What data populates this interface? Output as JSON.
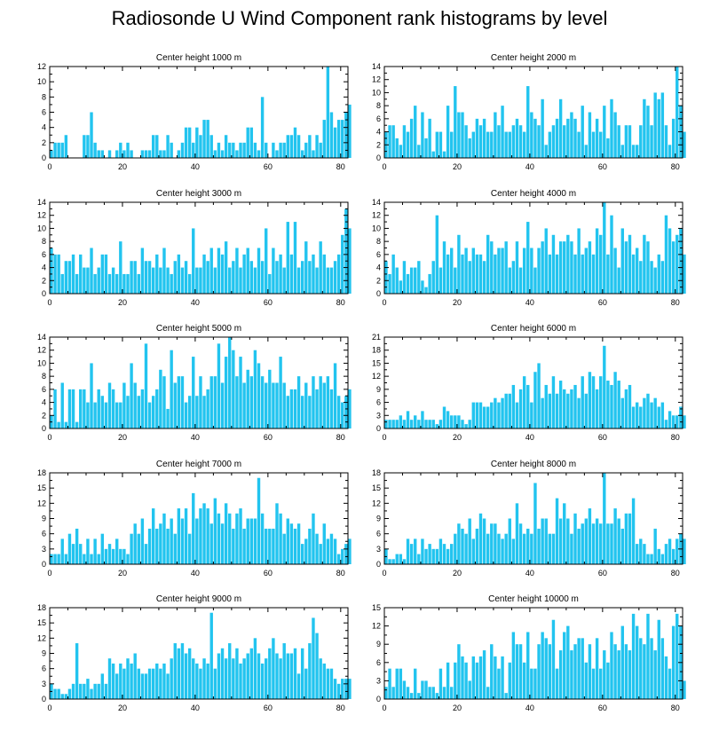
{
  "title": "Radiosonde U Wind Component rank histograms by level",
  "colors": {
    "bar": "#22c4ef",
    "axis": "#000000",
    "text": "#000000"
  },
  "chart_data": [
    {
      "type": "bar",
      "title": "Center height 1000 m",
      "xlabel": "",
      "ylabel": "",
      "xlim": [
        0,
        82
      ],
      "ylim": [
        0,
        12
      ],
      "xticks": [
        0,
        20,
        40,
        60,
        80
      ],
      "yticks": [
        0,
        2,
        4,
        6,
        8,
        10,
        12
      ],
      "values": [
        1,
        2,
        2,
        2,
        3,
        0,
        0,
        0,
        0,
        3,
        3,
        6,
        2,
        1,
        1,
        0,
        1,
        0,
        1,
        2,
        1,
        2,
        1,
        0,
        0,
        1,
        1,
        1,
        3,
        3,
        1,
        1,
        3,
        2,
        0,
        1,
        2,
        4,
        4,
        2,
        4,
        3,
        5,
        5,
        3,
        1,
        2,
        1,
        3,
        2,
        2,
        1,
        2,
        2,
        4,
        4,
        2,
        1,
        8,
        2,
        0,
        2,
        1,
        2,
        2,
        3,
        3,
        4,
        3,
        1,
        2,
        3,
        1,
        3,
        2,
        5,
        12,
        6,
        4,
        5,
        5,
        6,
        7
      ]
    },
    {
      "type": "bar",
      "title": "Center height 2000 m",
      "xlabel": "",
      "ylabel": "",
      "xlim": [
        0,
        82
      ],
      "ylim": [
        0,
        14
      ],
      "xticks": [
        0,
        20,
        40,
        60,
        80
      ],
      "yticks": [
        0,
        2,
        4,
        6,
        8,
        10,
        12,
        14
      ],
      "values": [
        4,
        5,
        5,
        3,
        2,
        5,
        4,
        6,
        8,
        2,
        7,
        3,
        6,
        1,
        4,
        4,
        1,
        8,
        4,
        11,
        7,
        7,
        5,
        3,
        4,
        6,
        5,
        6,
        4,
        4,
        7,
        5,
        8,
        4,
        4,
        5,
        6,
        5,
        4,
        11,
        7,
        6,
        5,
        9,
        2,
        4,
        5,
        6,
        9,
        5,
        6,
        7,
        6,
        4,
        8,
        2,
        7,
        4,
        6,
        4,
        8,
        3,
        9,
        7,
        5,
        2,
        5,
        5,
        2,
        2,
        5,
        9,
        8,
        5,
        10,
        9,
        10,
        5,
        2,
        6,
        14,
        8,
        4
      ]
    },
    {
      "type": "bar",
      "title": "Center height 3000 m",
      "xlabel": "",
      "ylabel": "",
      "xlim": [
        0,
        82
      ],
      "ylim": [
        0,
        14
      ],
      "xticks": [
        0,
        20,
        40,
        60,
        80
      ],
      "yticks": [
        0,
        2,
        4,
        6,
        8,
        10,
        12,
        14
      ],
      "values": [
        7,
        6,
        6,
        3,
        5,
        5,
        6,
        3,
        6,
        4,
        4,
        7,
        3,
        4,
        6,
        6,
        3,
        4,
        3,
        8,
        3,
        3,
        5,
        5,
        3,
        7,
        5,
        5,
        4,
        6,
        4,
        7,
        4,
        3,
        5,
        6,
        4,
        5,
        3,
        10,
        4,
        4,
        6,
        5,
        7,
        4,
        7,
        6,
        8,
        4,
        5,
        7,
        4,
        6,
        7,
        5,
        4,
        7,
        5,
        10,
        3,
        7,
        5,
        6,
        4,
        11,
        6,
        11,
        4,
        5,
        8,
        5,
        6,
        4,
        8,
        6,
        4,
        4,
        5,
        6,
        9,
        13,
        10
      ]
    },
    {
      "type": "bar",
      "title": "Center height 4000 m",
      "xlabel": "",
      "ylabel": "",
      "xlim": [
        0,
        82
      ],
      "ylim": [
        0,
        14
      ],
      "xticks": [
        0,
        20,
        40,
        60,
        80
      ],
      "yticks": [
        0,
        2,
        4,
        6,
        8,
        10,
        12,
        14
      ],
      "values": [
        5,
        3,
        6,
        4,
        2,
        5,
        3,
        4,
        4,
        5,
        2,
        1,
        3,
        5,
        12,
        4,
        8,
        6,
        7,
        4,
        9,
        6,
        7,
        5,
        7,
        6,
        6,
        5,
        9,
        8,
        6,
        7,
        7,
        8,
        4,
        5,
        8,
        4,
        7,
        11,
        7,
        4,
        7,
        8,
        10,
        6,
        9,
        6,
        8,
        8,
        9,
        8,
        6,
        10,
        6,
        7,
        8,
        6,
        10,
        9,
        14,
        6,
        12,
        7,
        4,
        10,
        8,
        9,
        6,
        7,
        5,
        9,
        8,
        5,
        4,
        6,
        5,
        12,
        10,
        8,
        9,
        10,
        6
      ]
    },
    {
      "type": "bar",
      "title": "Center height 5000 m",
      "xlabel": "",
      "ylabel": "",
      "xlim": [
        0,
        82
      ],
      "ylim": [
        0,
        14
      ],
      "xticks": [
        0,
        20,
        40,
        60,
        80
      ],
      "yticks": [
        0,
        2,
        4,
        6,
        8,
        10,
        12,
        14
      ],
      "values": [
        2,
        6,
        1,
        7,
        1,
        6,
        6,
        1,
        6,
        6,
        4,
        10,
        4,
        6,
        5,
        4,
        7,
        6,
        4,
        4,
        7,
        5,
        10,
        7,
        5,
        6,
        13,
        4,
        5,
        6,
        9,
        8,
        3,
        12,
        7,
        8,
        8,
        4,
        5,
        11,
        5,
        8,
        5,
        6,
        8,
        8,
        13,
        7,
        11,
        14,
        12,
        8,
        11,
        7,
        9,
        8,
        12,
        10,
        8,
        7,
        9,
        7,
        7,
        11,
        7,
        5,
        6,
        6,
        8,
        5,
        7,
        5,
        8,
        6,
        8,
        7,
        8,
        6,
        10,
        5,
        4,
        5,
        6
      ]
    },
    {
      "type": "bar",
      "title": "Center height 6000 m",
      "xlabel": "",
      "ylabel": "",
      "xlim": [
        0,
        82
      ],
      "ylim": [
        0,
        21
      ],
      "xticks": [
        0,
        20,
        40,
        60,
        80
      ],
      "yticks": [
        0,
        3,
        6,
        9,
        12,
        15,
        18,
        21
      ],
      "values": [
        2,
        2,
        2,
        2,
        3,
        2,
        4,
        2,
        3,
        2,
        4,
        2,
        2,
        2,
        1,
        2,
        5,
        4,
        3,
        3,
        3,
        2,
        1,
        2,
        6,
        6,
        6,
        5,
        5,
        6,
        7,
        6,
        7,
        8,
        8,
        10,
        6,
        9,
        12,
        10,
        6,
        13,
        15,
        7,
        10,
        8,
        12,
        8,
        11,
        9,
        8,
        9,
        10,
        7,
        12,
        8,
        13,
        12,
        9,
        12,
        19,
        11,
        10,
        13,
        11,
        7,
        9,
        10,
        5,
        6,
        5,
        7,
        8,
        6,
        7,
        5,
        6,
        2,
        4,
        3,
        3,
        5,
        3
      ]
    },
    {
      "type": "bar",
      "title": "Center height 7000 m",
      "xlabel": "",
      "ylabel": "",
      "xlim": [
        0,
        82
      ],
      "ylim": [
        0,
        18
      ],
      "xticks": [
        0,
        20,
        40,
        60,
        80
      ],
      "yticks": [
        0,
        3,
        6,
        9,
        12,
        15,
        18
      ],
      "values": [
        2,
        2,
        2,
        5,
        2,
        6,
        4,
        7,
        4,
        2,
        5,
        2,
        5,
        2,
        6,
        3,
        4,
        3,
        5,
        3,
        3,
        2,
        6,
        8,
        6,
        9,
        4,
        7,
        11,
        7,
        8,
        10,
        7,
        9,
        6,
        11,
        9,
        11,
        6,
        14,
        9,
        11,
        12,
        11,
        8,
        13,
        10,
        8,
        12,
        10,
        7,
        10,
        11,
        7,
        9,
        9,
        9,
        17,
        10,
        7,
        7,
        7,
        12,
        10,
        6,
        9,
        8,
        7,
        8,
        4,
        5,
        7,
        10,
        6,
        4,
        8,
        5,
        6,
        5,
        2,
        3,
        4,
        5
      ]
    },
    {
      "type": "bar",
      "title": "Center height 8000 m",
      "xlabel": "",
      "ylabel": "",
      "xlim": [
        0,
        82
      ],
      "ylim": [
        0,
        18
      ],
      "xticks": [
        0,
        20,
        40,
        60,
        80
      ],
      "yticks": [
        0,
        3,
        6,
        9,
        12,
        15,
        18
      ],
      "values": [
        3,
        1,
        1,
        2,
        2,
        1,
        5,
        4,
        5,
        2,
        5,
        3,
        4,
        3,
        3,
        5,
        4,
        3,
        4,
        6,
        8,
        7,
        6,
        9,
        5,
        7,
        10,
        9,
        6,
        8,
        8,
        6,
        5,
        6,
        9,
        5,
        12,
        8,
        6,
        7,
        6,
        16,
        7,
        9,
        9,
        6,
        6,
        13,
        9,
        12,
        9,
        6,
        10,
        7,
        8,
        9,
        11,
        8,
        9,
        8,
        18,
        8,
        8,
        11,
        9,
        7,
        10,
        10,
        13,
        4,
        5,
        4,
        2,
        2,
        7,
        3,
        2,
        4,
        5,
        3,
        5,
        6,
        5
      ]
    },
    {
      "type": "bar",
      "title": "Center height 9000 m",
      "xlabel": "",
      "ylabel": "",
      "xlim": [
        0,
        82
      ],
      "ylim": [
        0,
        18
      ],
      "xticks": [
        0,
        20,
        40,
        60,
        80
      ],
      "yticks": [
        0,
        3,
        6,
        9,
        12,
        15,
        18
      ],
      "values": [
        3,
        2,
        2,
        1,
        1,
        2,
        3,
        11,
        3,
        3,
        4,
        2,
        3,
        3,
        5,
        3,
        8,
        7,
        5,
        7,
        6,
        8,
        7,
        9,
        6,
        5,
        5,
        6,
        6,
        7,
        6,
        7,
        5,
        8,
        11,
        10,
        11,
        9,
        10,
        8,
        7,
        6,
        8,
        7,
        17,
        6,
        9,
        10,
        8,
        11,
        8,
        10,
        7,
        8,
        9,
        10,
        12,
        9,
        7,
        8,
        10,
        12,
        9,
        8,
        11,
        9,
        9,
        10,
        5,
        10,
        6,
        11,
        16,
        13,
        8,
        7,
        6,
        6,
        4,
        3,
        4,
        4,
        4
      ]
    },
    {
      "type": "bar",
      "title": "Center height 10000 m",
      "xlabel": "",
      "ylabel": "",
      "xlim": [
        0,
        82
      ],
      "ylim": [
        0,
        15
      ],
      "xticks": [
        0,
        20,
        40,
        60,
        80
      ],
      "yticks": [
        0,
        3,
        6,
        9,
        12,
        15
      ],
      "values": [
        2,
        5,
        2,
        5,
        5,
        3,
        2,
        1,
        5,
        1,
        3,
        3,
        2,
        2,
        1,
        5,
        2,
        6,
        2,
        6,
        9,
        7,
        6,
        3,
        7,
        6,
        7,
        8,
        2,
        9,
        7,
        5,
        7,
        1,
        6,
        11,
        9,
        9,
        6,
        11,
        5,
        5,
        9,
        11,
        10,
        9,
        13,
        5,
        8,
        11,
        12,
        8,
        9,
        10,
        10,
        6,
        9,
        5,
        10,
        5,
        8,
        6,
        11,
        9,
        8,
        12,
        9,
        8,
        14,
        12,
        10,
        9,
        14,
        10,
        8,
        13,
        10,
        7,
        5,
        12,
        14,
        12,
        3
      ]
    }
  ]
}
